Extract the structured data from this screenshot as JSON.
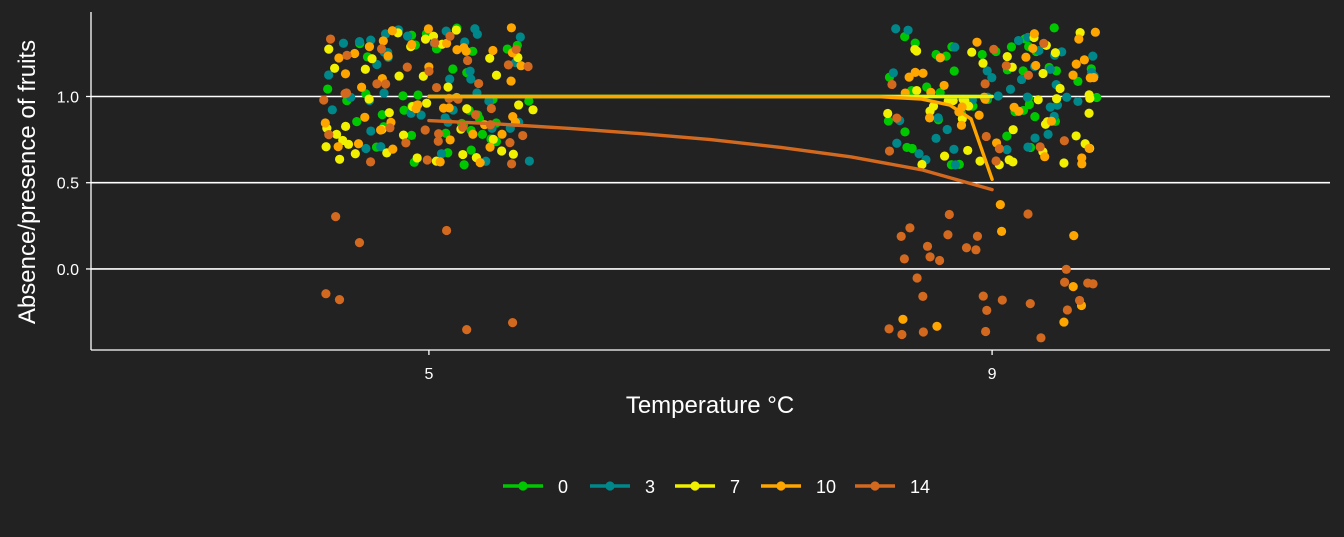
{
  "chart_data": {
    "type": "scatter",
    "title": "",
    "xlabel": "Temperature °C",
    "ylabel": "Absence/presence of fruits",
    "x_ticks": [
      5,
      9
    ],
    "y_ticks": [
      0.0,
      0.5,
      1.0
    ],
    "y_tick_labels": [
      "0.0",
      "0.5",
      "1.0"
    ],
    "xlim": [
      2.6,
      11.4
    ],
    "ylim": [
      -0.47,
      1.49
    ],
    "grid": "horizontal major lines",
    "legend_position": "bottom",
    "background": "#222222",
    "jitter": {
      "x": 0.75,
      "y": 0.4
    },
    "series": [
      {
        "name": "0",
        "color": "#00c800",
        "points": [
          {
            "x": 5,
            "y": 1,
            "n": 42
          },
          {
            "x": 9,
            "y": 1,
            "n": 42
          }
        ],
        "fit": [
          [
            5,
            1.0
          ],
          [
            9,
            1.0
          ]
        ]
      },
      {
        "name": "3",
        "color": "#00878a",
        "points": [
          {
            "x": 5,
            "y": 1,
            "n": 42
          },
          {
            "x": 9,
            "y": 1,
            "n": 42
          }
        ],
        "fit": [
          [
            5,
            1.0
          ],
          [
            9,
            1.0
          ]
        ]
      },
      {
        "name": "7",
        "color": "#f0f000",
        "points": [
          {
            "x": 5,
            "y": 1,
            "n": 42
          },
          {
            "x": 9,
            "y": 1,
            "n": 42
          }
        ],
        "fit": [
          [
            5,
            1.0
          ],
          [
            9,
            1.0
          ]
        ]
      },
      {
        "name": "10",
        "color": "#ffa500",
        "points": [
          {
            "x": 5,
            "y": 1,
            "n": 42
          },
          {
            "x": 9,
            "y": 1,
            "n": 34
          },
          {
            "x": 9,
            "y": 0,
            "n": 8
          }
        ],
        "fit": [
          [
            5,
            1.0
          ],
          [
            8.2,
            0.999
          ],
          [
            8.5,
            0.985
          ],
          [
            8.7,
            0.95
          ],
          [
            8.85,
            0.87
          ],
          [
            9.0,
            0.52
          ]
        ]
      },
      {
        "name": "14",
        "color": "#d2691e",
        "points": [
          {
            "x": 5,
            "y": 1,
            "n": 35
          },
          {
            "x": 5,
            "y": 0,
            "n": 7
          },
          {
            "x": 9,
            "y": 1,
            "n": 13
          },
          {
            "x": 9,
            "y": 0,
            "n": 29
          }
        ],
        "fit": [
          [
            5,
            0.86
          ],
          [
            5.5,
            0.84
          ],
          [
            6.0,
            0.815
          ],
          [
            6.5,
            0.785
          ],
          [
            7.0,
            0.75
          ],
          [
            7.5,
            0.705
          ],
          [
            8.0,
            0.65
          ],
          [
            8.5,
            0.575
          ],
          [
            9.0,
            0.46
          ]
        ]
      }
    ]
  }
}
